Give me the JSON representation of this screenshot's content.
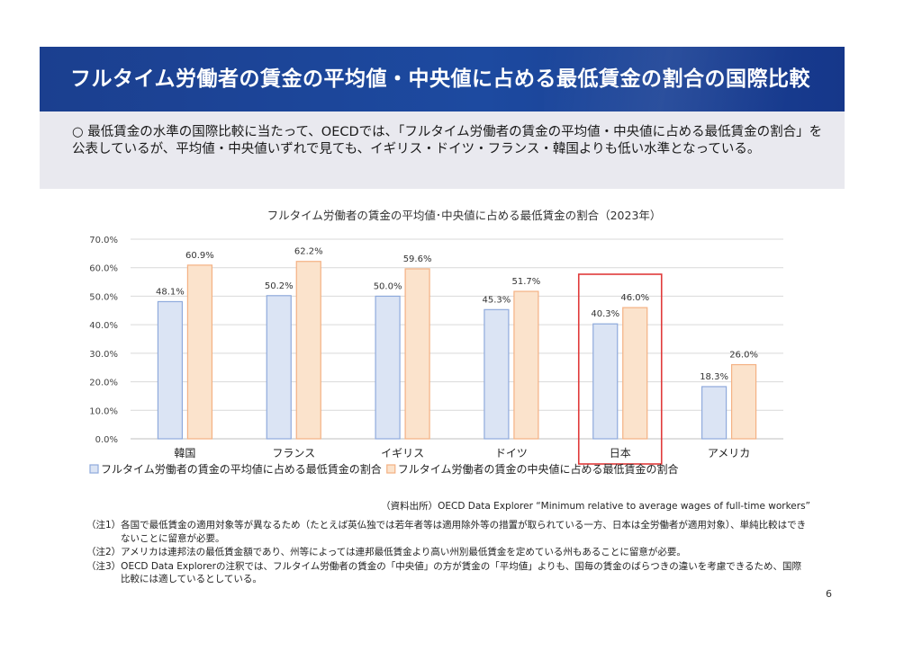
{
  "header": {
    "title": "フルタイム労働者の賃金の平均値・中央値に占める最低賃金の割合の国際比較"
  },
  "summary": {
    "text": "○ 最低賃金の水準の国際比較に当たって、OECDでは、「フルタイム労働者の賃金の平均値・中央値に占める最低賃金の割合」を公表しているが、平均値・中央値いずれで見ても、イギリス・ドイツ・フランス・韓国よりも低い水準となっている。"
  },
  "chart_data": {
    "type": "bar",
    "title": "フルタイム労働者の賃金の平均値･中央値に占める最低賃金の割合（2023年）",
    "categories": [
      "韓国",
      "フランス",
      "イギリス",
      "ドイツ",
      "日本",
      "アメリカ"
    ],
    "series": [
      {
        "name": "フルタイム労働者の賃金の平均値に占める最低賃金の割合",
        "values": [
          48.1,
          50.2,
          50.0,
          45.3,
          40.3,
          18.3
        ],
        "labels": [
          "48.1%",
          "50.2%",
          "50.0%",
          "45.3%",
          "40.3%",
          "18.3%"
        ],
        "fill": "#dbe4f4",
        "stroke": "#8faadc"
      },
      {
        "name": "フルタイム労働者の賃金の中央値に占める最低賃金の割合",
        "values": [
          60.9,
          62.2,
          59.6,
          51.7,
          46.0,
          26.0
        ],
        "labels": [
          "60.9%",
          "62.2%",
          "59.6%",
          "51.7%",
          "46.0%",
          "26.0%"
        ],
        "fill": "#fbe3cc",
        "stroke": "#f4b183"
      }
    ],
    "ylim": [
      0,
      70
    ],
    "yticks": [
      0,
      10,
      20,
      30,
      40,
      50,
      60,
      70
    ],
    "ytick_labels": [
      "0.0%",
      "10.0%",
      "20.0%",
      "30.0%",
      "40.0%",
      "50.0%",
      "60.0%",
      "70.0%"
    ],
    "grid": true,
    "legend_position": "bottom",
    "highlight_category": "日本",
    "highlight_color": "#e03a3a"
  },
  "source": "（資料出所）OECD Data Explorer “Minimum relative to average wages of full-time workers”",
  "notes": [
    "（注1）各国で最低賃金の適用対象等が異なるため（たとえば英仏独では若年者等は適用除外等の措置が取られている一方、日本は全労働者が適用対象）、単純比較はできないことに留意が必要。",
    "（注2）アメリカは連邦法の最低賃金額であり、州等によっては連邦最低賃金より高い州別最低賃金を定めている州もあることに留意が必要。",
    "（注3）OECD Data Explorerの注釈では、フルタイム労働者の賃金の「中央値」の方が賃金の「平均値」よりも、国毎の賃金のばらつきの違いを考慮できるため、国際比較には適しているとしている。"
  ],
  "page_number": "6"
}
